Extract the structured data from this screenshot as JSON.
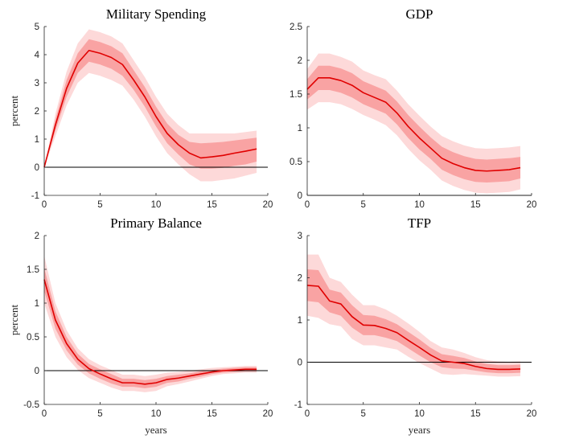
{
  "chart_data": [
    {
      "type": "line",
      "title": "Military Spending",
      "xlabel": "",
      "ylabel": "percent",
      "xlim": [
        0,
        20
      ],
      "ylim": [
        -1,
        5
      ],
      "xticks": [
        0,
        5,
        10,
        15,
        20
      ],
      "yticks": [
        -1,
        0,
        1,
        2,
        3,
        4,
        5
      ],
      "x": [
        0,
        1,
        2,
        3,
        4,
        5,
        6,
        7,
        8,
        9,
        10,
        11,
        12,
        13,
        14,
        15,
        16,
        17,
        18,
        19
      ],
      "series": [
        {
          "name": "estimate",
          "color": "#e00000",
          "values": [
            0,
            1.5,
            2.8,
            3.7,
            4.15,
            4.05,
            3.9,
            3.65,
            3.1,
            2.5,
            1.8,
            1.2,
            0.8,
            0.5,
            0.33,
            0.37,
            0.42,
            0.5,
            0.57,
            0.65
          ]
        },
        {
          "name": "outer_band_upper",
          "values": [
            0,
            1.9,
            3.4,
            4.4,
            4.9,
            4.8,
            4.65,
            4.4,
            3.8,
            3.2,
            2.5,
            1.9,
            1.5,
            1.2,
            1.2,
            1.2,
            1.2,
            1.2,
            1.25,
            1.3
          ]
        },
        {
          "name": "inner_band_upper",
          "values": [
            0,
            1.7,
            3.1,
            4.05,
            4.55,
            4.45,
            4.3,
            4.05,
            3.45,
            2.85,
            2.15,
            1.55,
            1.15,
            0.9,
            0.85,
            0.87,
            0.9,
            0.95,
            1.0,
            1.05
          ]
        },
        {
          "name": "inner_band_lower",
          "values": [
            0,
            1.3,
            2.5,
            3.35,
            3.75,
            3.65,
            3.5,
            3.25,
            2.75,
            2.15,
            1.45,
            0.85,
            0.45,
            0.1,
            -0.05,
            -0.05,
            -0.02,
            0.05,
            0.1,
            0.2
          ]
        },
        {
          "name": "outer_band_lower",
          "values": [
            0,
            1.1,
            2.2,
            3.0,
            3.35,
            3.25,
            3.1,
            2.9,
            2.4,
            1.8,
            1.1,
            0.5,
            0.1,
            -0.25,
            -0.5,
            -0.5,
            -0.45,
            -0.4,
            -0.3,
            -0.2
          ]
        }
      ]
    },
    {
      "type": "line",
      "title": "GDP",
      "xlabel": "",
      "ylabel": "",
      "xlim": [
        0,
        20
      ],
      "ylim": [
        0,
        2.5
      ],
      "xticks": [
        0,
        5,
        10,
        15,
        20
      ],
      "yticks": [
        0,
        0.5,
        1,
        1.5,
        2,
        2.5
      ],
      "x": [
        0,
        1,
        2,
        3,
        4,
        5,
        6,
        7,
        8,
        9,
        10,
        11,
        12,
        13,
        14,
        15,
        16,
        17,
        18,
        19
      ],
      "series": [
        {
          "name": "estimate",
          "color": "#e00000",
          "values": [
            1.57,
            1.74,
            1.74,
            1.7,
            1.63,
            1.52,
            1.45,
            1.38,
            1.22,
            1.02,
            0.85,
            0.7,
            0.55,
            0.47,
            0.41,
            0.37,
            0.36,
            0.37,
            0.38,
            0.41
          ]
        },
        {
          "name": "outer_band_upper",
          "values": [
            1.87,
            2.1,
            2.1,
            2.05,
            1.98,
            1.85,
            1.78,
            1.72,
            1.55,
            1.35,
            1.18,
            1.02,
            0.88,
            0.8,
            0.74,
            0.7,
            0.69,
            0.7,
            0.71,
            0.73
          ]
        },
        {
          "name": "inner_band_upper",
          "values": [
            1.72,
            1.92,
            1.92,
            1.88,
            1.81,
            1.69,
            1.62,
            1.55,
            1.39,
            1.19,
            1.02,
            0.86,
            0.72,
            0.64,
            0.58,
            0.54,
            0.53,
            0.54,
            0.55,
            0.57
          ]
        },
        {
          "name": "inner_band_lower",
          "values": [
            1.42,
            1.56,
            1.56,
            1.52,
            1.45,
            1.35,
            1.28,
            1.21,
            1.05,
            0.85,
            0.68,
            0.54,
            0.38,
            0.3,
            0.24,
            0.2,
            0.19,
            0.2,
            0.21,
            0.25
          ]
        },
        {
          "name": "outer_band_lower",
          "values": [
            1.27,
            1.38,
            1.38,
            1.35,
            1.28,
            1.19,
            1.12,
            1.04,
            0.89,
            0.69,
            0.52,
            0.38,
            0.22,
            0.14,
            0.08,
            0.04,
            0.03,
            0.04,
            0.05,
            0.09
          ]
        }
      ]
    },
    {
      "type": "line",
      "title": "Primary Balance",
      "xlabel": "years",
      "ylabel": "percent",
      "xlim": [
        0,
        20
      ],
      "ylim": [
        -0.5,
        2
      ],
      "xticks": [
        0,
        5,
        10,
        15,
        20
      ],
      "yticks": [
        -0.5,
        0,
        0.5,
        1,
        1.5,
        2
      ],
      "x": [
        0,
        1,
        2,
        3,
        4,
        5,
        6,
        7,
        8,
        9,
        10,
        11,
        12,
        13,
        14,
        15,
        16,
        17,
        18,
        19
      ],
      "series": [
        {
          "name": "estimate",
          "color": "#e00000",
          "values": [
            1.35,
            0.75,
            0.4,
            0.17,
            0.03,
            -0.05,
            -0.12,
            -0.18,
            -0.18,
            -0.2,
            -0.18,
            -0.13,
            -0.11,
            -0.08,
            -0.05,
            -0.02,
            0.0,
            0.01,
            0.02,
            0.02
          ]
        },
        {
          "name": "outer_band_upper",
          "values": [
            1.7,
            1.0,
            0.6,
            0.33,
            0.17,
            0.08,
            0.01,
            -0.06,
            -0.06,
            -0.08,
            -0.06,
            -0.03,
            -0.02,
            0.0,
            0.02,
            0.04,
            0.05,
            0.06,
            0.07,
            0.07
          ]
        },
        {
          "name": "inner_band_upper",
          "values": [
            1.52,
            0.88,
            0.5,
            0.25,
            0.1,
            0.02,
            -0.05,
            -0.12,
            -0.12,
            -0.14,
            -0.12,
            -0.08,
            -0.06,
            -0.04,
            -0.01,
            0.01,
            0.03,
            0.04,
            0.05,
            0.05
          ]
        },
        {
          "name": "inner_band_lower",
          "values": [
            1.18,
            0.62,
            0.3,
            0.09,
            -0.04,
            -0.12,
            -0.19,
            -0.24,
            -0.24,
            -0.26,
            -0.24,
            -0.18,
            -0.16,
            -0.12,
            -0.09,
            -0.05,
            -0.03,
            -0.02,
            -0.01,
            -0.01
          ]
        },
        {
          "name": "outer_band_lower",
          "values": [
            1.0,
            0.5,
            0.2,
            0.01,
            -0.11,
            -0.18,
            -0.25,
            -0.3,
            -0.3,
            -0.32,
            -0.3,
            -0.23,
            -0.2,
            -0.16,
            -0.12,
            -0.08,
            -0.05,
            -0.04,
            -0.03,
            -0.03
          ]
        }
      ]
    },
    {
      "type": "line",
      "title": "TFP",
      "xlabel": "years",
      "ylabel": "",
      "xlim": [
        0,
        20
      ],
      "ylim": [
        -1,
        3
      ],
      "xticks": [
        0,
        5,
        10,
        15,
        20
      ],
      "yticks": [
        -1,
        0,
        1,
        2,
        3
      ],
      "x": [
        0,
        1,
        2,
        3,
        4,
        5,
        6,
        7,
        8,
        9,
        10,
        11,
        12,
        13,
        14,
        15,
        16,
        17,
        18,
        19
      ],
      "series": [
        {
          "name": "estimate",
          "color": "#e00000",
          "values": [
            1.82,
            1.8,
            1.45,
            1.38,
            1.08,
            0.88,
            0.87,
            0.8,
            0.7,
            0.52,
            0.35,
            0.17,
            0.03,
            0.0,
            -0.03,
            -0.1,
            -0.15,
            -0.17,
            -0.17,
            -0.16
          ]
        },
        {
          "name": "outer_band_upper",
          "values": [
            2.55,
            2.55,
            2.0,
            1.9,
            1.6,
            1.35,
            1.35,
            1.25,
            1.1,
            0.92,
            0.72,
            0.5,
            0.35,
            0.3,
            0.22,
            0.12,
            0.05,
            0.02,
            0.01,
            0.02
          ]
        },
        {
          "name": "inner_band_upper",
          "values": [
            2.2,
            2.18,
            1.72,
            1.65,
            1.35,
            1.12,
            1.1,
            1.02,
            0.9,
            0.72,
            0.54,
            0.34,
            0.19,
            0.15,
            0.1,
            0.02,
            -0.04,
            -0.07,
            -0.07,
            -0.06
          ]
        },
        {
          "name": "inner_band_lower",
          "values": [
            1.45,
            1.42,
            1.18,
            1.1,
            0.82,
            0.64,
            0.64,
            0.58,
            0.5,
            0.33,
            0.16,
            0.0,
            -0.12,
            -0.15,
            -0.16,
            -0.2,
            -0.24,
            -0.26,
            -0.26,
            -0.25
          ]
        },
        {
          "name": "outer_band_lower",
          "values": [
            1.1,
            1.05,
            0.9,
            0.85,
            0.55,
            0.4,
            0.4,
            0.35,
            0.3,
            0.13,
            -0.02,
            -0.15,
            -0.28,
            -0.3,
            -0.28,
            -0.3,
            -0.32,
            -0.34,
            -0.34,
            -0.33
          ]
        }
      ]
    }
  ],
  "colors": {
    "line": "#e00000",
    "outer_band": "#fdd9d9",
    "inner_band": "#f9a3a3",
    "zero_line": "#000000",
    "axis": "#262626"
  }
}
